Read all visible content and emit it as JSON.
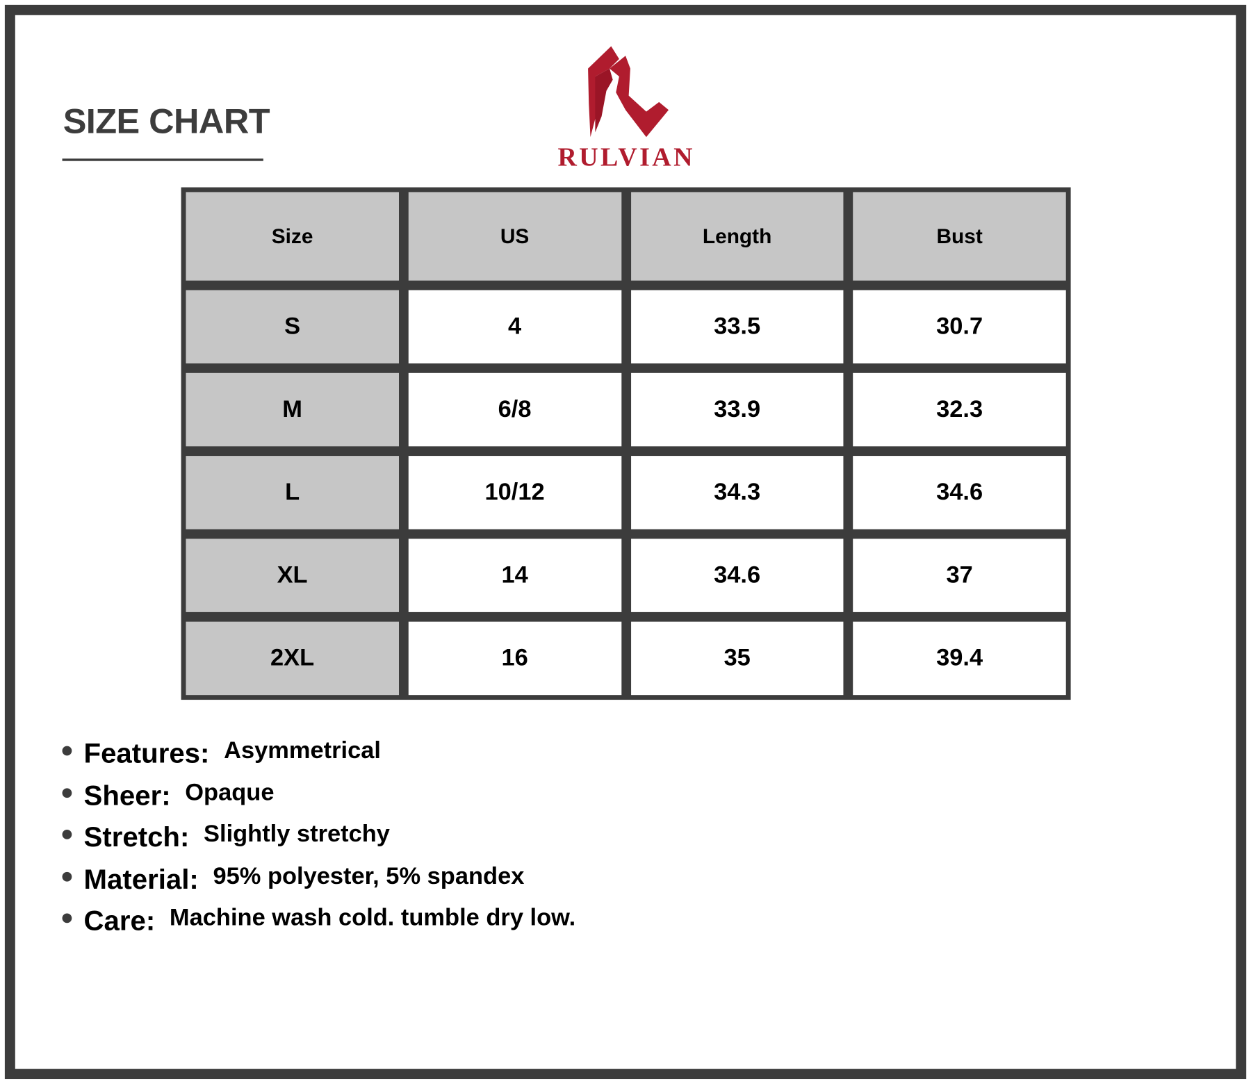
{
  "title": "SIZE CHART",
  "brand": {
    "name": "RULVIAN",
    "color": "#b01c2e",
    "logo_icon": "stylized-r-logo"
  },
  "colors": {
    "border": "#3c3c3c",
    "header_fill": "#c6c6c6"
  },
  "table": {
    "headers": [
      "Size",
      "US",
      "Length",
      "Bust"
    ],
    "rows": [
      [
        "S",
        "4",
        "33.5",
        "30.7"
      ],
      [
        "M",
        "6/8",
        "33.9",
        "32.3"
      ],
      [
        "L",
        "10/12",
        "34.3",
        "34.6"
      ],
      [
        "XL",
        "14",
        "34.6",
        "37"
      ],
      [
        "2XL",
        "16",
        "35",
        "39.4"
      ]
    ]
  },
  "features": [
    {
      "label": "Features:",
      "value": "Asymmetrical"
    },
    {
      "label": "Sheer:",
      "value": "Opaque"
    },
    {
      "label": "Stretch:",
      "value": "Slightly stretchy"
    },
    {
      "label": "Material:",
      "value": "95% polyester, 5% spandex"
    },
    {
      "label": "Care:",
      "value": "Machine wash cold. tumble dry low."
    }
  ]
}
